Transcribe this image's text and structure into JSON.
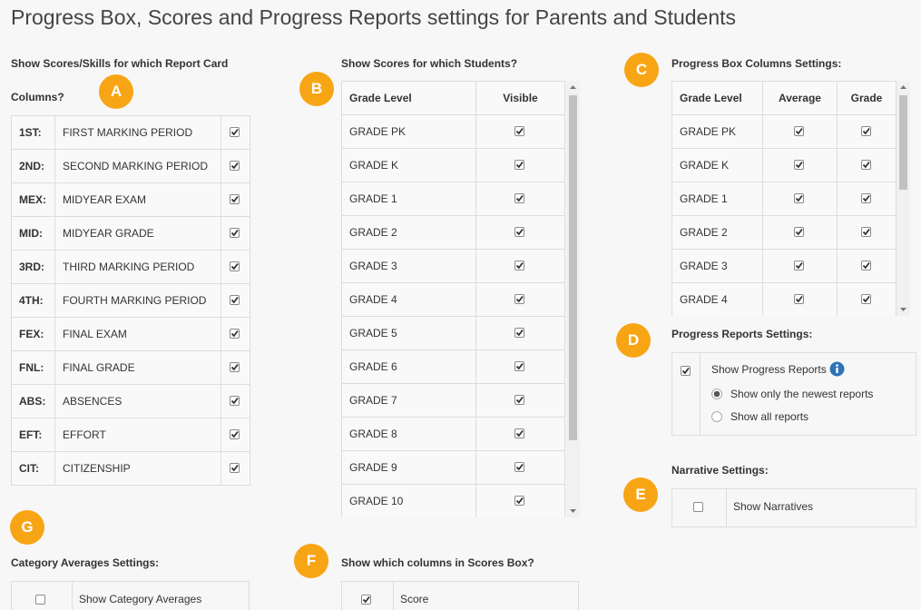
{
  "header": {
    "title": "Progress Box, Scores and Progress Reports settings for Parents and Students"
  },
  "report_card": {
    "badge": "A",
    "label": "Show Scores/Skills for which Report Card Columns?",
    "rows": [
      {
        "code": "1ST:",
        "name": "FIRST MARKING PERIOD",
        "checked": true
      },
      {
        "code": "2ND:",
        "name": "SECOND MARKING PERIOD",
        "checked": true
      },
      {
        "code": "MEX:",
        "name": "MIDYEAR EXAM",
        "checked": true
      },
      {
        "code": "MID:",
        "name": "MIDYEAR GRADE",
        "checked": true
      },
      {
        "code": "3RD:",
        "name": "THIRD MARKING PERIOD",
        "checked": true
      },
      {
        "code": "4TH:",
        "name": "FOURTH MARKING PERIOD",
        "checked": true
      },
      {
        "code": "FEX:",
        "name": "FINAL EXAM",
        "checked": true
      },
      {
        "code": "FNL:",
        "name": "FINAL GRADE",
        "checked": true
      },
      {
        "code": "ABS:",
        "name": "ABSENCES",
        "checked": true
      },
      {
        "code": "EFT:",
        "name": "EFFORT",
        "checked": true
      },
      {
        "code": "CIT:",
        "name": "CITIZENSHIP",
        "checked": true
      }
    ]
  },
  "students": {
    "badge": "B",
    "label": "Show Scores for which Students?",
    "columns": [
      "Grade Level",
      "Visible"
    ],
    "rows": [
      {
        "grade": "GRADE PK",
        "visible": true
      },
      {
        "grade": "GRADE K",
        "visible": true
      },
      {
        "grade": "GRADE 1",
        "visible": true
      },
      {
        "grade": "GRADE 2",
        "visible": true
      },
      {
        "grade": "GRADE 3",
        "visible": true
      },
      {
        "grade": "GRADE 4",
        "visible": true
      },
      {
        "grade": "GRADE 5",
        "visible": true
      },
      {
        "grade": "GRADE 6",
        "visible": true
      },
      {
        "grade": "GRADE 7",
        "visible": true
      },
      {
        "grade": "GRADE 8",
        "visible": true
      },
      {
        "grade": "GRADE 9",
        "visible": true
      },
      {
        "grade": "GRADE 10",
        "visible": true
      }
    ]
  },
  "progress_box": {
    "badge": "C",
    "label": "Progress Box Columns Settings:",
    "columns": [
      "Grade Level",
      "Average",
      "Grade"
    ],
    "rows": [
      {
        "grade": "GRADE PK",
        "average": true,
        "grade_shown": true
      },
      {
        "grade": "GRADE K",
        "average": true,
        "grade_shown": true
      },
      {
        "grade": "GRADE 1",
        "average": true,
        "grade_shown": true
      },
      {
        "grade": "GRADE 2",
        "average": true,
        "grade_shown": true
      },
      {
        "grade": "GRADE 3",
        "average": true,
        "grade_shown": true
      },
      {
        "grade": "GRADE 4",
        "average": true,
        "grade_shown": true
      }
    ]
  },
  "progress_reports": {
    "badge": "D",
    "label": "Progress Reports Settings:",
    "checked": true,
    "option": "Show Progress Reports",
    "radios": [
      {
        "label": "Show only the newest reports",
        "selected": true
      },
      {
        "label": "Show all reports",
        "selected": false
      }
    ]
  },
  "narrative": {
    "badge": "E",
    "label": "Narrative Settings:",
    "checked": false,
    "option": "Show Narratives"
  },
  "scores_box": {
    "badge": "F",
    "label": "Show which columns in Scores Box?",
    "checked": true,
    "option": "Score"
  },
  "category_averages": {
    "badge": "G",
    "label": "Category Averages Settings:",
    "checked": false,
    "option": "Show Category Averages"
  }
}
